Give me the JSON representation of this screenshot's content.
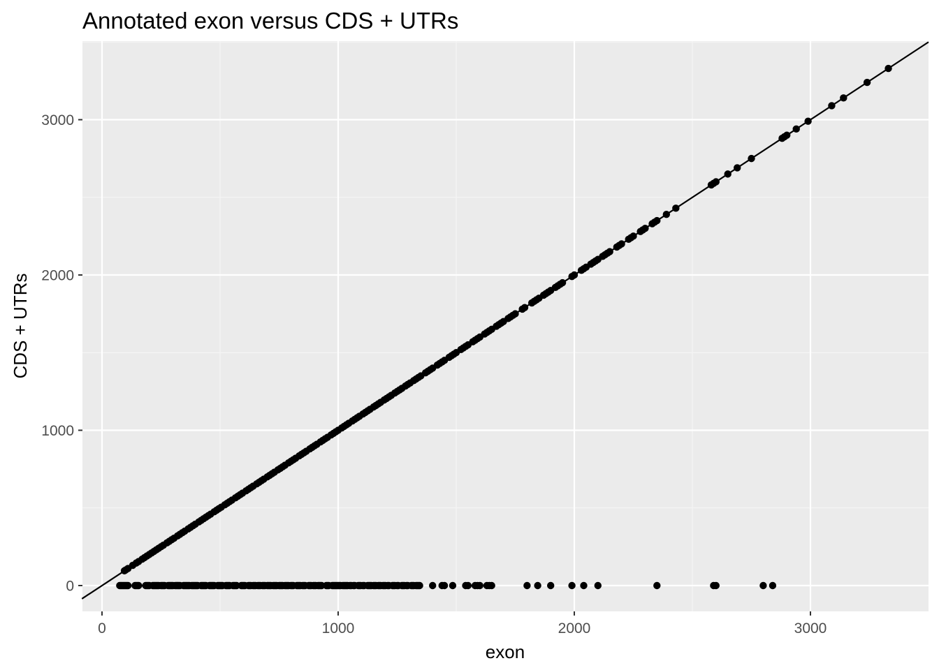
{
  "chart_data": {
    "type": "scatter",
    "title": "Annotated exon versus CDS + UTRs",
    "xlabel": "exon",
    "ylabel": "CDS + UTRs",
    "xlim": [
      -85,
      3500
    ],
    "ylim": [
      -90,
      3500
    ],
    "x_ticks": [
      0,
      1000,
      2000,
      3000
    ],
    "y_ticks": [
      0,
      1000,
      2000,
      3000
    ],
    "x_tick_labels": [
      "0",
      "1000",
      "2000",
      "3000"
    ],
    "y_tick_labels": [
      "0",
      "1000",
      "2000",
      "3000"
    ],
    "grid": true,
    "legend": "none",
    "reference_line": {
      "type": "abline",
      "intercept": 0,
      "slope": 1
    },
    "colors": {
      "panel_background": "#ebebeb",
      "grid_major": "#ffffff",
      "grid_minor": "#f5f5f5",
      "point": "#000000",
      "line": "#000000",
      "tick_label": "#4d4d4d"
    },
    "series": [
      {
        "points_on_diagonal": [
          [
            95,
            95
          ],
          [
            100,
            100
          ],
          [
            110,
            110
          ],
          [
            130,
            130
          ],
          [
            145,
            145
          ],
          [
            155,
            155
          ],
          [
            170,
            170
          ],
          [
            180,
            180
          ],
          [
            190,
            190
          ],
          [
            200,
            200
          ],
          [
            210,
            210
          ],
          [
            220,
            220
          ],
          [
            230,
            230
          ],
          [
            240,
            240
          ],
          [
            250,
            250
          ],
          [
            260,
            260
          ],
          [
            275,
            275
          ],
          [
            285,
            285
          ],
          [
            295,
            295
          ],
          [
            305,
            305
          ],
          [
            320,
            320
          ],
          [
            330,
            330
          ],
          [
            340,
            340
          ],
          [
            350,
            350
          ],
          [
            365,
            365
          ],
          [
            375,
            375
          ],
          [
            385,
            385
          ],
          [
            395,
            395
          ],
          [
            410,
            410
          ],
          [
            420,
            420
          ],
          [
            430,
            430
          ],
          [
            440,
            440
          ],
          [
            450,
            450
          ],
          [
            460,
            460
          ],
          [
            475,
            475
          ],
          [
            485,
            485
          ],
          [
            495,
            495
          ],
          [
            505,
            505
          ],
          [
            520,
            520
          ],
          [
            530,
            530
          ],
          [
            540,
            540
          ],
          [
            550,
            550
          ],
          [
            565,
            565
          ],
          [
            575,
            575
          ],
          [
            585,
            585
          ],
          [
            595,
            595
          ],
          [
            610,
            610
          ],
          [
            620,
            620
          ],
          [
            630,
            630
          ],
          [
            640,
            640
          ],
          [
            655,
            655
          ],
          [
            665,
            665
          ],
          [
            675,
            675
          ],
          [
            685,
            685
          ],
          [
            700,
            700
          ],
          [
            710,
            710
          ],
          [
            720,
            720
          ],
          [
            730,
            730
          ],
          [
            745,
            745
          ],
          [
            755,
            755
          ],
          [
            765,
            765
          ],
          [
            775,
            775
          ],
          [
            790,
            790
          ],
          [
            800,
            800
          ],
          [
            810,
            810
          ],
          [
            820,
            820
          ],
          [
            835,
            835
          ],
          [
            845,
            845
          ],
          [
            855,
            855
          ],
          [
            865,
            865
          ],
          [
            880,
            880
          ],
          [
            890,
            890
          ],
          [
            900,
            900
          ],
          [
            910,
            910
          ],
          [
            925,
            925
          ],
          [
            935,
            935
          ],
          [
            945,
            945
          ],
          [
            955,
            955
          ],
          [
            970,
            970
          ],
          [
            980,
            980
          ],
          [
            990,
            990
          ],
          [
            1000,
            1000
          ],
          [
            1015,
            1015
          ],
          [
            1025,
            1025
          ],
          [
            1035,
            1035
          ],
          [
            1045,
            1045
          ],
          [
            1060,
            1060
          ],
          [
            1070,
            1070
          ],
          [
            1080,
            1080
          ],
          [
            1090,
            1090
          ],
          [
            1105,
            1105
          ],
          [
            1115,
            1115
          ],
          [
            1125,
            1125
          ],
          [
            1135,
            1135
          ],
          [
            1150,
            1150
          ],
          [
            1160,
            1160
          ],
          [
            1170,
            1170
          ],
          [
            1180,
            1180
          ],
          [
            1195,
            1195
          ],
          [
            1205,
            1205
          ],
          [
            1215,
            1215
          ],
          [
            1225,
            1225
          ],
          [
            1240,
            1240
          ],
          [
            1250,
            1250
          ],
          [
            1260,
            1260
          ],
          [
            1270,
            1270
          ],
          [
            1285,
            1285
          ],
          [
            1295,
            1295
          ],
          [
            1305,
            1305
          ],
          [
            1320,
            1320
          ],
          [
            1330,
            1330
          ],
          [
            1340,
            1340
          ],
          [
            1350,
            1350
          ],
          [
            1370,
            1370
          ],
          [
            1380,
            1380
          ],
          [
            1390,
            1390
          ],
          [
            1400,
            1400
          ],
          [
            1420,
            1420
          ],
          [
            1430,
            1430
          ],
          [
            1440,
            1440
          ],
          [
            1450,
            1450
          ],
          [
            1470,
            1470
          ],
          [
            1480,
            1480
          ],
          [
            1490,
            1490
          ],
          [
            1500,
            1500
          ],
          [
            1520,
            1520
          ],
          [
            1530,
            1530
          ],
          [
            1540,
            1540
          ],
          [
            1550,
            1550
          ],
          [
            1570,
            1570
          ],
          [
            1580,
            1580
          ],
          [
            1590,
            1590
          ],
          [
            1600,
            1600
          ],
          [
            1620,
            1620
          ],
          [
            1630,
            1630
          ],
          [
            1640,
            1640
          ],
          [
            1650,
            1650
          ],
          [
            1670,
            1670
          ],
          [
            1680,
            1680
          ],
          [
            1690,
            1690
          ],
          [
            1700,
            1700
          ],
          [
            1720,
            1720
          ],
          [
            1730,
            1730
          ],
          [
            1740,
            1740
          ],
          [
            1750,
            1750
          ],
          [
            1780,
            1780
          ],
          [
            1790,
            1790
          ],
          [
            1820,
            1820
          ],
          [
            1830,
            1830
          ],
          [
            1840,
            1840
          ],
          [
            1850,
            1850
          ],
          [
            1870,
            1870
          ],
          [
            1880,
            1880
          ],
          [
            1890,
            1890
          ],
          [
            1900,
            1900
          ],
          [
            1920,
            1920
          ],
          [
            1930,
            1930
          ],
          [
            1940,
            1940
          ],
          [
            1950,
            1950
          ],
          [
            1990,
            1990
          ],
          [
            2000,
            2000
          ],
          [
            2030,
            2030
          ],
          [
            2040,
            2040
          ],
          [
            2050,
            2050
          ],
          [
            2070,
            2070
          ],
          [
            2080,
            2080
          ],
          [
            2090,
            2090
          ],
          [
            2100,
            2100
          ],
          [
            2120,
            2120
          ],
          [
            2130,
            2130
          ],
          [
            2140,
            2140
          ],
          [
            2150,
            2150
          ],
          [
            2180,
            2180
          ],
          [
            2190,
            2190
          ],
          [
            2200,
            2200
          ],
          [
            2230,
            2230
          ],
          [
            2240,
            2240
          ],
          [
            2250,
            2250
          ],
          [
            2280,
            2280
          ],
          [
            2290,
            2290
          ],
          [
            2300,
            2300
          ],
          [
            2330,
            2330
          ],
          [
            2340,
            2340
          ],
          [
            2350,
            2350
          ],
          [
            2390,
            2390
          ],
          [
            2430,
            2430
          ],
          [
            2580,
            2580
          ],
          [
            2590,
            2590
          ],
          [
            2600,
            2600
          ],
          [
            2650,
            2650
          ],
          [
            2690,
            2690
          ],
          [
            2750,
            2750
          ],
          [
            2880,
            2880
          ],
          [
            2890,
            2890
          ],
          [
            2900,
            2900
          ],
          [
            2940,
            2940
          ],
          [
            2990,
            2990
          ],
          [
            3090,
            3090
          ],
          [
            3140,
            3140
          ],
          [
            3240,
            3240
          ],
          [
            3330,
            3330
          ]
        ],
        "points_at_zero_x": [
          75,
          80,
          85,
          90,
          95,
          100,
          105,
          110,
          140,
          145,
          150,
          155,
          185,
          190,
          195,
          200,
          215,
          220,
          225,
          230,
          235,
          240,
          250,
          255,
          260,
          265,
          280,
          285,
          290,
          295,
          300,
          310,
          315,
          320,
          325,
          330,
          345,
          350,
          355,
          360,
          365,
          370,
          380,
          385,
          390,
          395,
          400,
          405,
          420,
          425,
          430,
          435,
          440,
          455,
          460,
          465,
          470,
          475,
          490,
          495,
          500,
          505,
          510,
          525,
          530,
          535,
          540,
          555,
          560,
          565,
          570,
          590,
          595,
          600,
          605,
          620,
          625,
          630,
          640,
          645,
          650,
          660,
          665,
          670,
          680,
          685,
          690,
          700,
          705,
          710,
          715,
          725,
          730,
          735,
          740,
          750,
          755,
          760,
          765,
          775,
          780,
          785,
          790,
          800,
          805,
          810,
          825,
          830,
          835,
          840,
          850,
          855,
          860,
          875,
          880,
          885,
          895,
          900,
          905,
          915,
          920,
          925,
          930,
          950,
          955,
          960,
          975,
          980,
          985,
          990,
          995,
          1000,
          1005,
          1010,
          1020,
          1025,
          1030,
          1035,
          1040,
          1050,
          1055,
          1065,
          1070,
          1085,
          1090,
          1095,
          1105,
          1110,
          1125,
          1130,
          1135,
          1140,
          1150,
          1155,
          1160,
          1170,
          1175,
          1180,
          1190,
          1195,
          1200,
          1210,
          1215,
          1230,
          1235,
          1240,
          1250,
          1255,
          1270,
          1275,
          1280,
          1290,
          1295,
          1310,
          1315,
          1320,
          1330,
          1335,
          1340,
          1345,
          1400,
          1440,
          1450,
          1485,
          1540,
          1550,
          1580,
          1590,
          1600,
          1630,
          1640,
          1650,
          1800,
          1845,
          1900,
          1990,
          2040,
          2100,
          2350,
          2590,
          2600,
          2800,
          2840
        ]
      }
    ]
  }
}
